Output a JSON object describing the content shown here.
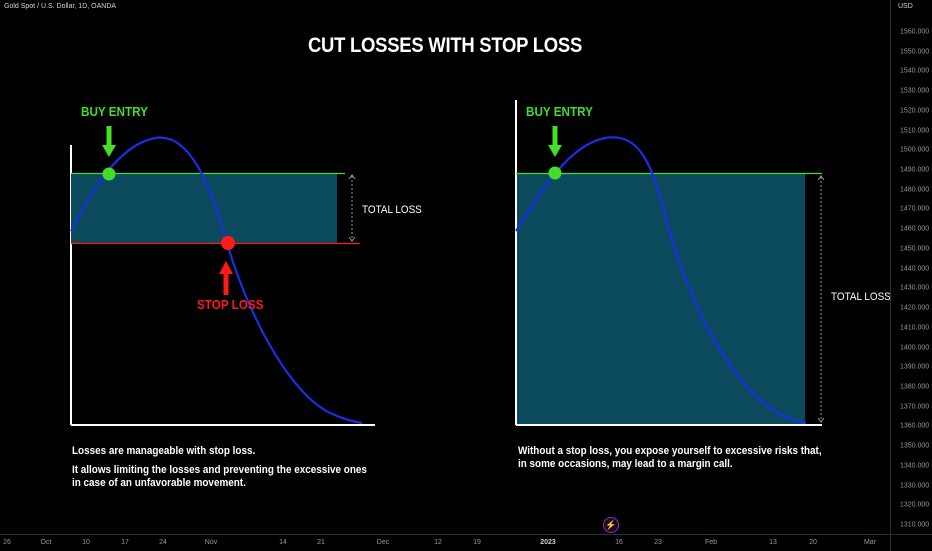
{
  "header": {
    "symbol": "Gold Spot / U.S. Dollar, 1D, OANDA",
    "currency": "USD"
  },
  "title": "CUT LOSSES WITH STOP LOSS",
  "price_axis": [
    "1560.000",
    "1550.000",
    "1540.000",
    "1530.000",
    "1520.000",
    "1510.000",
    "1500.000",
    "1490.000",
    "1480.000",
    "1470.000",
    "1460.000",
    "1450.000",
    "1440.000",
    "1430.000",
    "1420.000",
    "1410.000",
    "1400.000",
    "1390.000",
    "1380.000",
    "1370.000",
    "1360.000",
    "1350.000",
    "1340.000",
    "1330.000",
    "1320.000",
    "1310.000"
  ],
  "time_axis": [
    {
      "label": "26"
    },
    {
      "label": "Oct"
    },
    {
      "label": "10"
    },
    {
      "label": "17"
    },
    {
      "label": "24"
    },
    {
      "label": "Nov"
    },
    {
      "label": "14"
    },
    {
      "label": "21"
    },
    {
      "label": "Dec"
    },
    {
      "label": "12"
    },
    {
      "label": "19"
    },
    {
      "label": "2023",
      "bold": true
    },
    {
      "label": "16"
    },
    {
      "label": "23"
    },
    {
      "label": "Feb"
    },
    {
      "label": "13"
    },
    {
      "label": "20"
    },
    {
      "label": "Mar"
    }
  ],
  "left_panel": {
    "buy_entry": "BUY ENTRY",
    "stop_loss": "STOP LOSS",
    "total_loss": "TOTAL LOSS",
    "note_line1": "Losses are manageable with stop loss.",
    "note_line2": "It allows limiting the losses and preventing the excessive ones",
    "note_line3": "in case of an unfavorable movement."
  },
  "right_panel": {
    "buy_entry": "BUY ENTRY",
    "total_loss": "TOTAL LOSS",
    "note_line1": "Without a stop loss, you expose yourself to excessive risks that,",
    "note_line2": "in some occasions, may lead to a margin call."
  },
  "colors": {
    "entry_green": "#44dd2a",
    "stop_red": "#ff1a1a",
    "loss_zone": "#0a4a5c",
    "price_curve": "#1a2ee8"
  },
  "icons": {
    "events": "lightning-icon"
  }
}
